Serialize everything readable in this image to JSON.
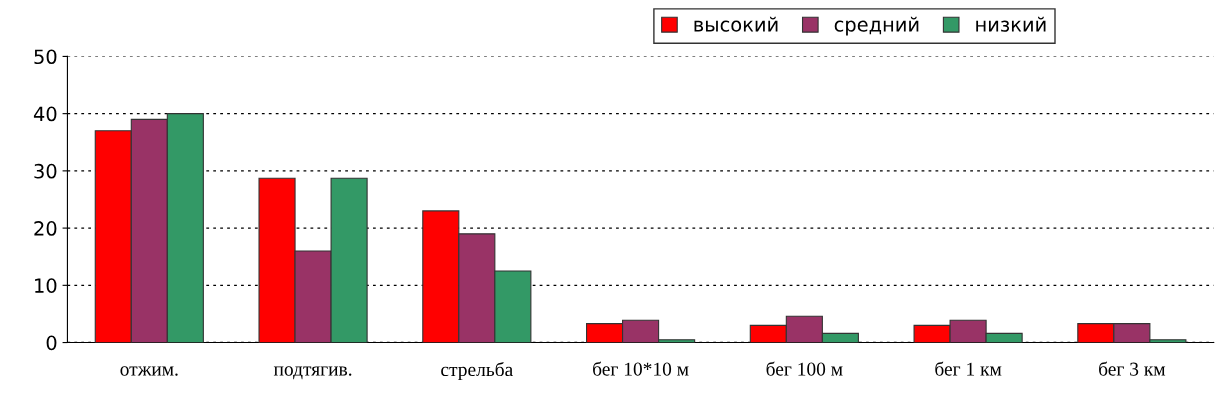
{
  "chart_data": {
    "type": "bar",
    "categories": [
      "отжим.",
      "подтягив.",
      "стрельба",
      "бег 10*10 м",
      "бег 100 м",
      "бег 1 км",
      "бег 3 км"
    ],
    "series": [
      {
        "name": "высокий",
        "color": "#ff0000",
        "values": [
          37,
          28.7,
          23,
          3.3,
          3,
          3,
          3.3
        ]
      },
      {
        "name": "средний",
        "color": "#993366",
        "values": [
          39,
          16,
          19,
          3.9,
          4.6,
          3.9,
          3.3
        ]
      },
      {
        "name": "низкий",
        "color": "#339966",
        "values": [
          40,
          28.7,
          12.5,
          0.5,
          1.6,
          1.6,
          0.5
        ]
      }
    ],
    "ylim": [
      0,
      50
    ],
    "yticks": [
      0,
      10,
      20,
      30,
      40,
      50
    ],
    "grid": "y",
    "legend": "top right"
  }
}
